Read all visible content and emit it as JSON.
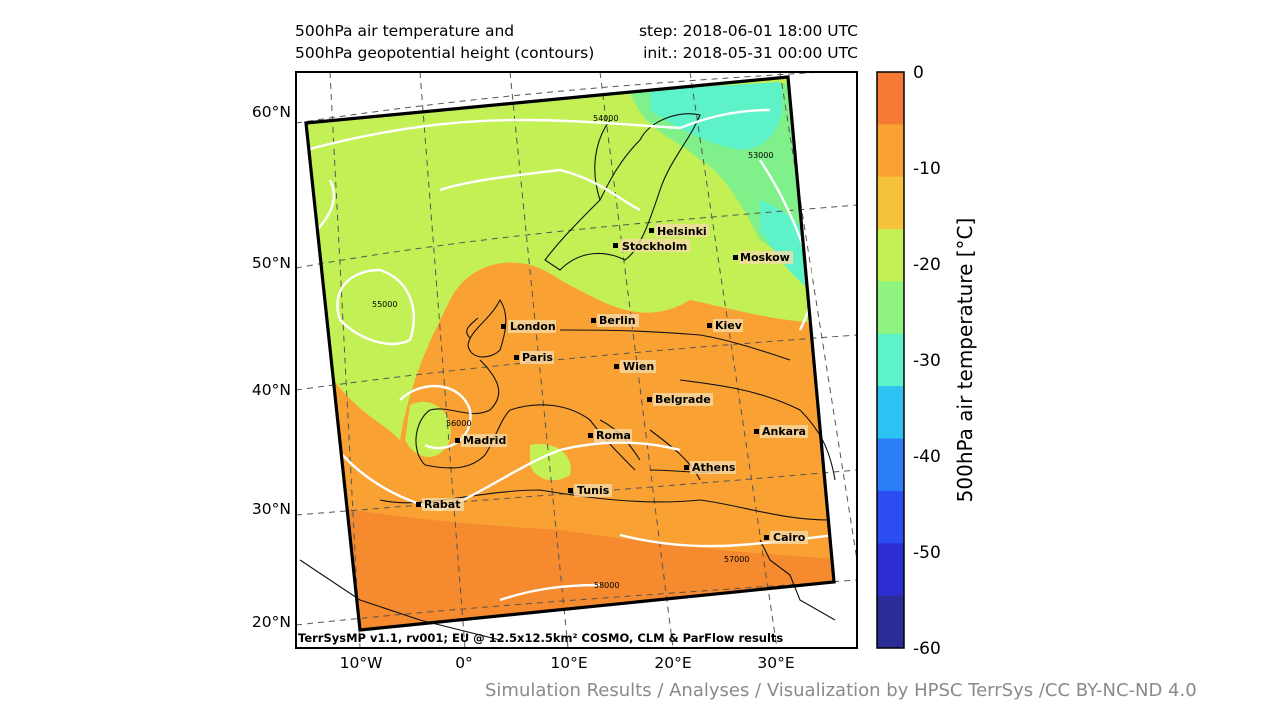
{
  "title": {
    "line1_left": "500hPa air temperature and",
    "line2_left": "500hPa geopotential height (contours)",
    "line1_right": "step: 2018-06-01 18:00 UTC",
    "line2_right": "init.: 2018-05-31 00:00 UTC"
  },
  "map": {
    "lat_labels": [
      "60°N",
      "50°N",
      "40°N",
      "30°N",
      "20°N"
    ],
    "lon_labels": [
      "10°W",
      "0°",
      "10°E",
      "20°E",
      "30°E"
    ],
    "cities": [
      {
        "name": "Helsinki"
      },
      {
        "name": "Stockholm"
      },
      {
        "name": "Moskow"
      },
      {
        "name": "London"
      },
      {
        "name": "Berlin"
      },
      {
        "name": "Kiev"
      },
      {
        "name": "Paris"
      },
      {
        "name": "Wien"
      },
      {
        "name": "Belgrade"
      },
      {
        "name": "Madrid"
      },
      {
        "name": "Roma"
      },
      {
        "name": "Ankara"
      },
      {
        "name": "Athens"
      },
      {
        "name": "Tunis"
      },
      {
        "name": "Rabat"
      },
      {
        "name": "Cairo"
      }
    ],
    "contour_labels": [
      "54000",
      "53000",
      "55000",
      "56000",
      "57000",
      "58000"
    ],
    "model_note": "TerrSysMP v1.1, rv001; EU @ 12.5x12.5km² COSMO, CLM & ParFlow results",
    "colors": {
      "very_warm": "#f58a2e",
      "warm": "#f9a233",
      "mild": "#f6c23a",
      "cool": "#c3f054",
      "cold": "#7ff08a",
      "colder": "#5ef2c8",
      "contour": "#ffffff",
      "frame": "#000000"
    }
  },
  "colorbar": {
    "label": "500hPa air temperature [°C]",
    "ticks": [
      "0",
      "-10",
      "-20",
      "-30",
      "-40",
      "-50",
      "-60"
    ],
    "colors": [
      "#f77a34",
      "#f9a233",
      "#f6c23a",
      "#c3f054",
      "#8ff380",
      "#5ef2c8",
      "#2ec2f2",
      "#2c7ef6",
      "#2c4ef0",
      "#2c2ed2",
      "#2c2c96"
    ]
  },
  "credit": "Simulation Results / Analyses / Visualization by HPSC TerrSys /CC BY-NC-ND 4.0"
}
